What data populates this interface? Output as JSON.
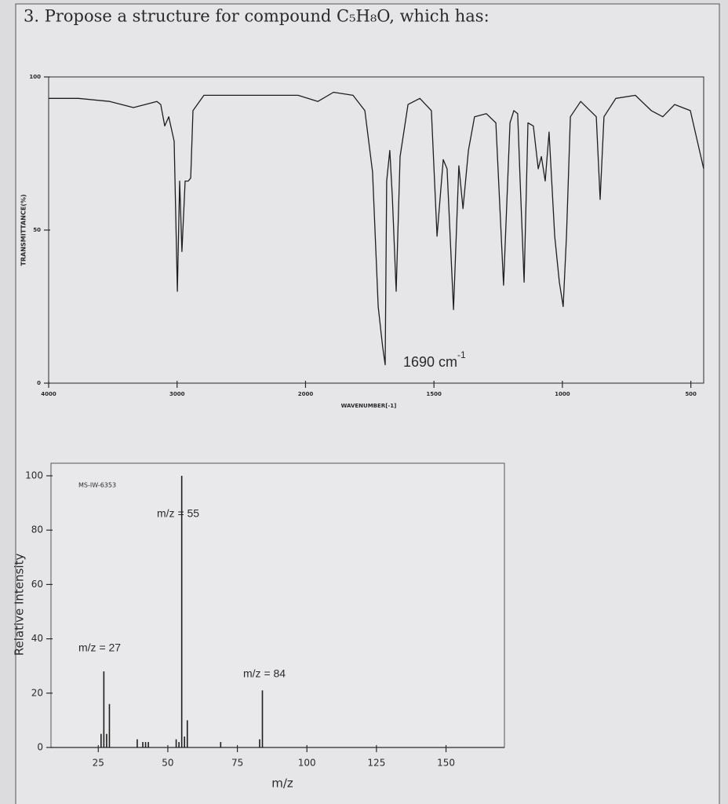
{
  "header": {
    "title": "3.  Propose a structure for compound C₅H₈O, which has:"
  },
  "chart_data": [
    {
      "type": "line",
      "y_label": "TRANSMITTANCE(%)",
      "x_label": "WAVENUMBER[-1]",
      "annotation": {
        "text": "1690 cm",
        "sup": "-1"
      },
      "x_scale_break": 2000,
      "color": "#1e1e1e",
      "x": [
        4000,
        3768,
        3524,
        3340,
        3157,
        3127,
        3096,
        3065,
        3023,
        2998,
        2980,
        2962,
        2937,
        2913,
        2894,
        2876,
        2791,
        2546,
        2058,
        1952,
        1891,
        1815,
        1769,
        1739,
        1717,
        1700,
        1690,
        1684,
        1672,
        1662,
        1647,
        1632,
        1601,
        1555,
        1510,
        1488,
        1464,
        1449,
        1424,
        1403,
        1387,
        1366,
        1342,
        1296,
        1259,
        1229,
        1204,
        1189,
        1174,
        1165,
        1149,
        1134,
        1113,
        1094,
        1082,
        1067,
        1052,
        1030,
        1012,
        997,
        984,
        969,
        929,
        868,
        853,
        838,
        792,
        716,
        654,
        609,
        563,
        502,
        450
      ],
      "values": [
        93,
        93,
        92,
        90,
        92,
        91,
        84,
        87,
        79,
        30,
        66,
        43,
        66,
        66,
        67,
        89,
        94,
        94,
        94,
        92,
        95,
        94,
        89,
        69,
        25,
        12,
        6,
        66,
        76,
        61,
        30,
        74,
        91,
        93,
        89,
        48,
        73,
        70,
        24,
        71,
        57,
        76,
        87,
        88,
        85,
        32,
        85,
        89,
        88,
        67,
        33,
        85,
        84,
        70,
        74,
        66,
        82,
        48,
        33,
        25,
        48,
        87,
        92,
        87,
        60,
        87,
        93,
        94,
        89,
        87,
        91,
        89,
        70
      ],
      "xlim": [
        4000,
        450
      ],
      "xticks": [
        4000,
        3000,
        2000,
        1500,
        1000,
        500
      ],
      "ylim": [
        0,
        100
      ],
      "yticks": [
        0,
        50,
        100
      ]
    },
    {
      "type": "bar",
      "y_label": "Relative Intensity",
      "x_label": "m/z",
      "annotations": [
        "MS-IW-6353",
        "m/z = 55",
        "m/z = 27",
        "m/z = 84"
      ],
      "color": "#1e1e1e",
      "x": [
        26,
        27,
        28,
        29,
        39,
        41,
        42,
        43,
        53,
        54,
        55,
        56,
        57,
        69,
        83,
        84
      ],
      "values": [
        5,
        28,
        5,
        16,
        3,
        2,
        2,
        2,
        3,
        2,
        100,
        4,
        10,
        2,
        3,
        21
      ],
      "xlim": [
        8,
        171
      ],
      "xticks": [
        25,
        50,
        75,
        100,
        125,
        150
      ],
      "ylim": [
        0,
        100
      ],
      "yticks": [
        0,
        20,
        40,
        60,
        80,
        100
      ]
    }
  ]
}
